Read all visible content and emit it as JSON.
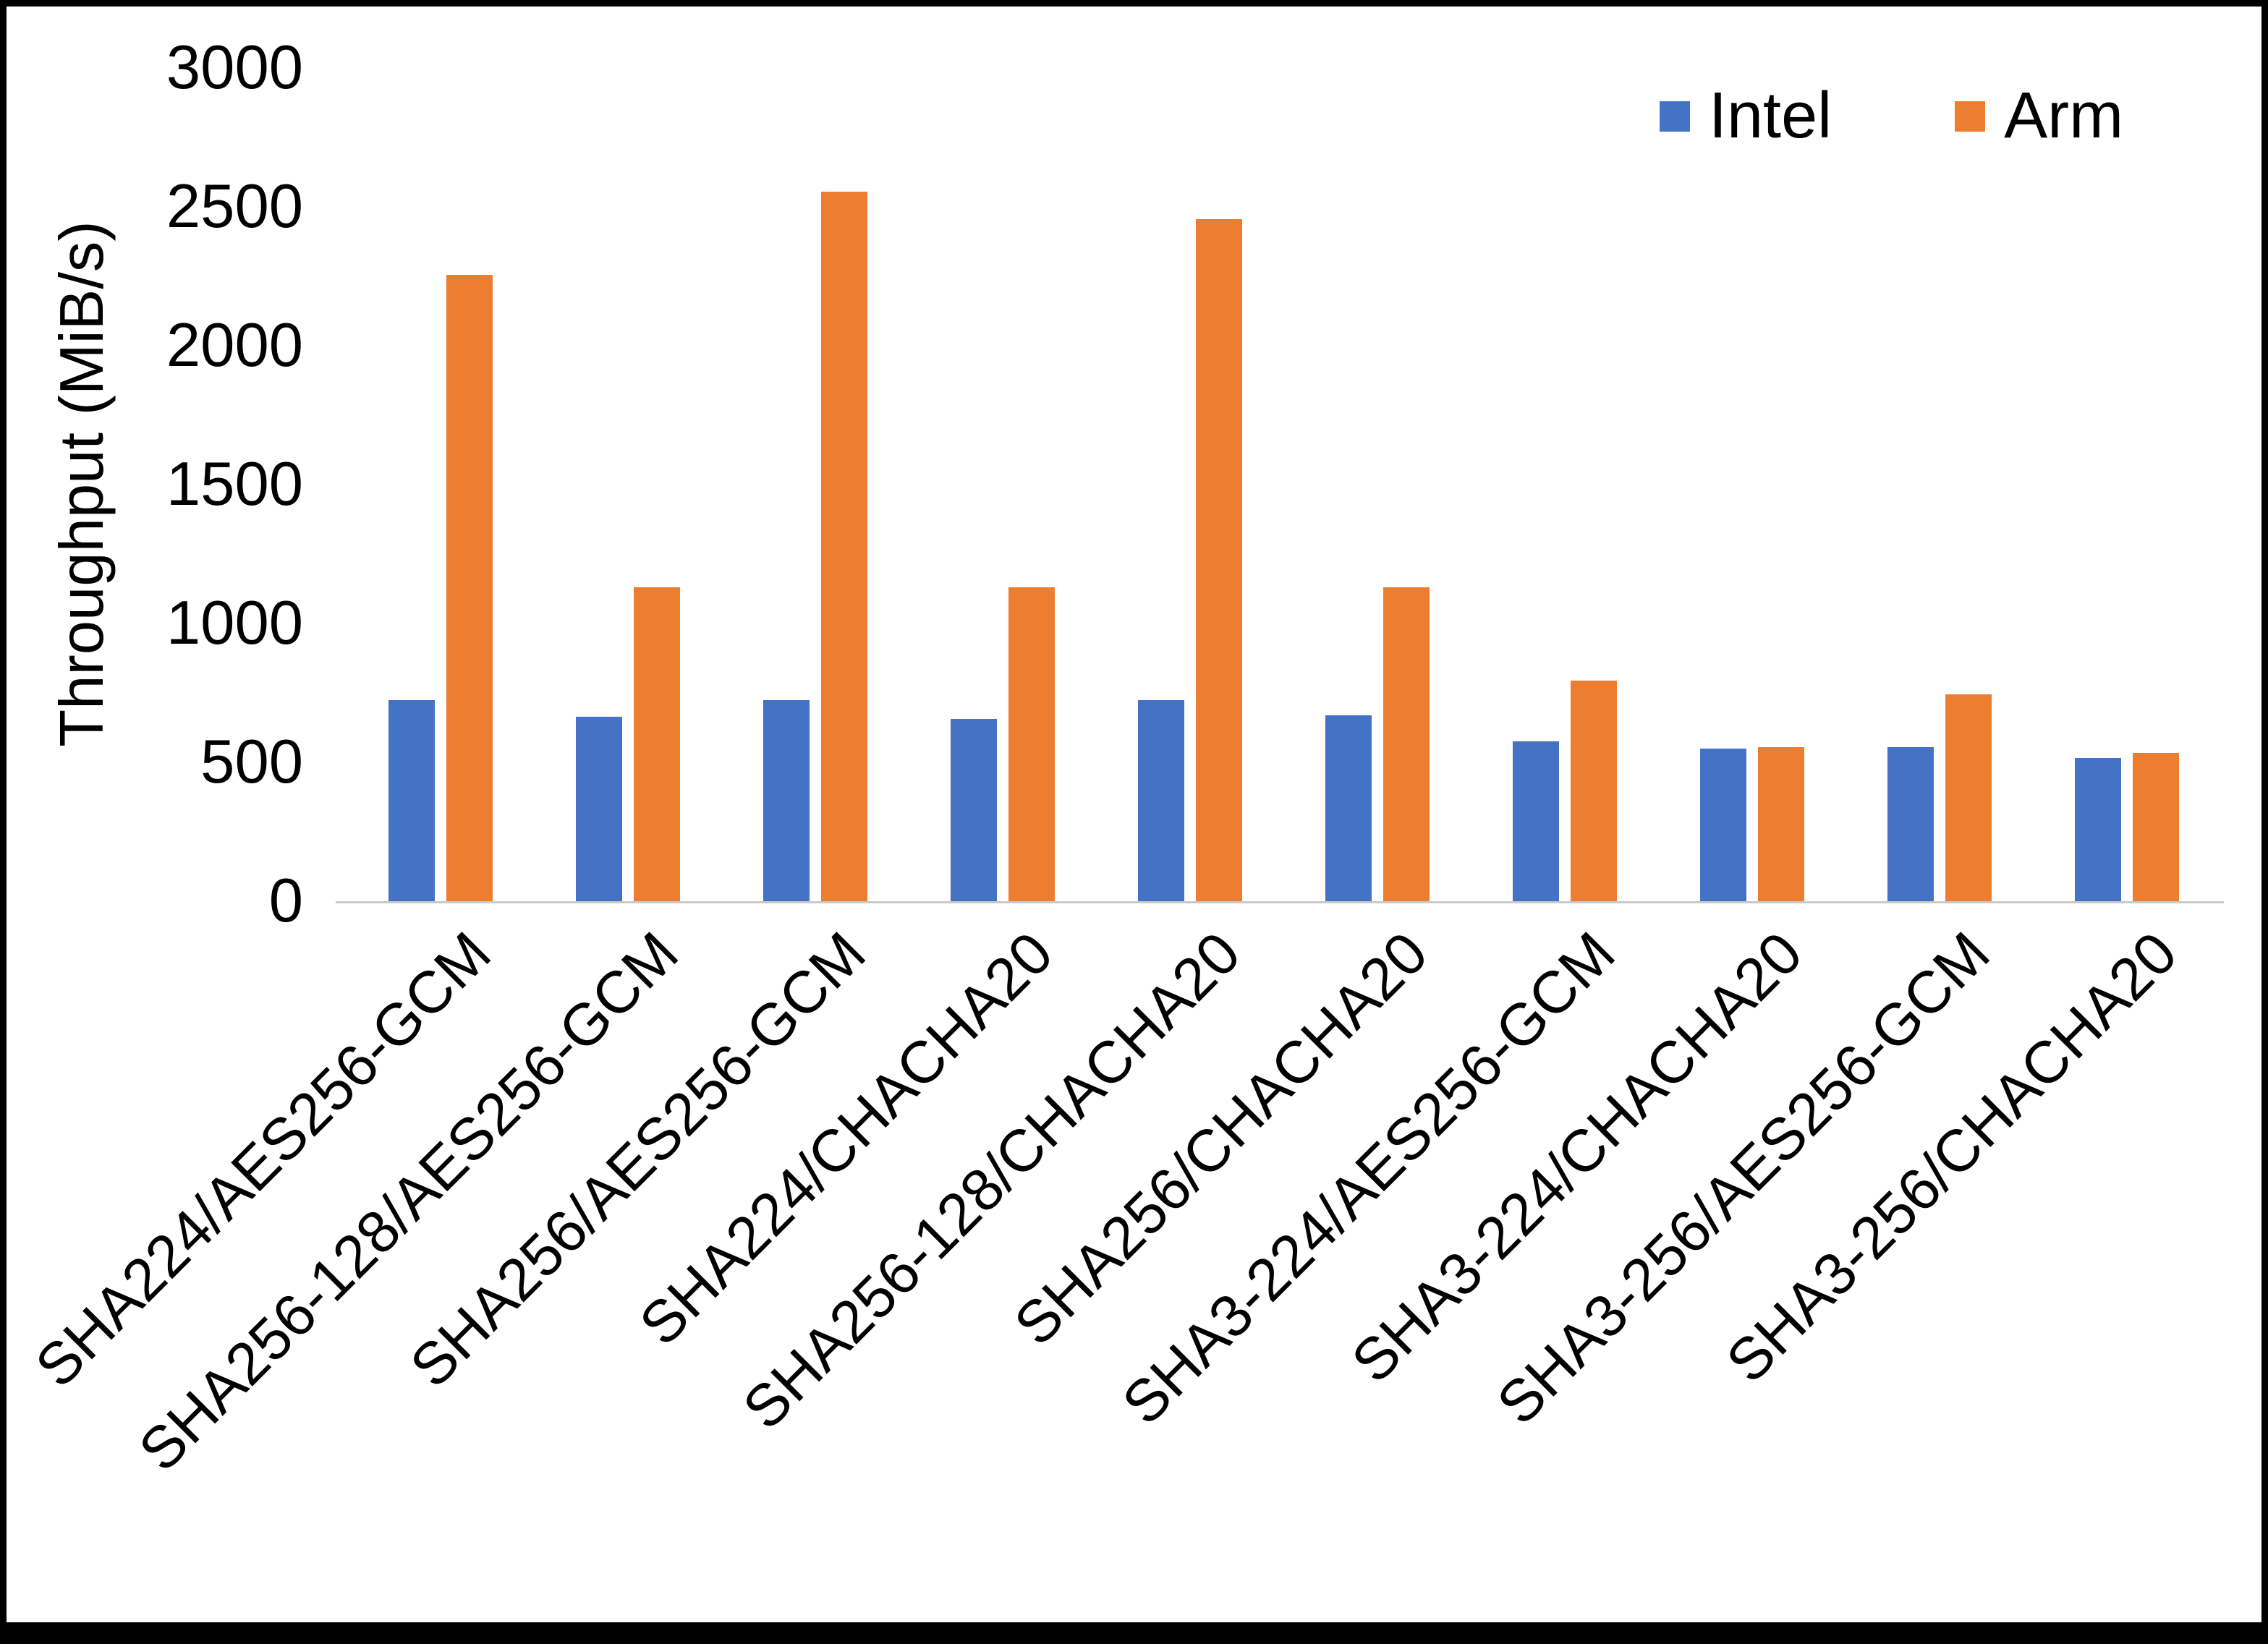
{
  "chart_data": {
    "type": "bar",
    "title": "",
    "xlabel": "",
    "ylabel": "Throughput (MiB/s)",
    "ylim": [
      0,
      3000
    ],
    "ytick_step": 500,
    "grid": false,
    "legend_position": "top-right",
    "categories": [
      "SHA224/AES256-GCM",
      "SHA256-128/AES256-GCM",
      "SHA256/AES256-GCM",
      "SHA224/CHACHA20",
      "SHA256-128/CHACHA20",
      "SHA256/CHACHA20",
      "SHA3-224/AES256-GCM",
      "SHA3-224/CHACHA20",
      "SHA3-256/AES256-GCM",
      "SHA3-256/CHACHA20"
    ],
    "series": [
      {
        "name": "Intel",
        "color": "#4472C4",
        "values": [
          725,
          665,
          725,
          655,
          725,
          670,
          575,
          550,
          555,
          515
        ]
      },
      {
        "name": "Arm",
        "color": "#ED7D31",
        "values": [
          2255,
          1130,
          2555,
          1130,
          2455,
          1130,
          795,
          555,
          745,
          535
        ]
      }
    ]
  }
}
